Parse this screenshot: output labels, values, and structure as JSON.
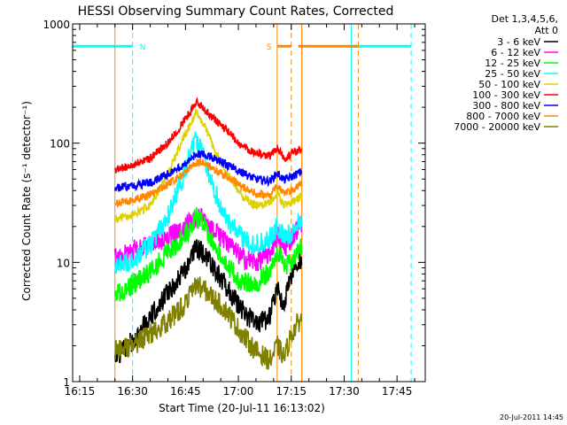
{
  "chart_data": {
    "type": "line",
    "title": "HESSI Observing Summary Count Rates, Corrected",
    "xlabel": "Start Time (20-Jul-11 16:13:02)",
    "ylabel": "Corrected Count Rate (s⁻¹ detector⁻¹)",
    "yscale": "log",
    "ylim": [
      1,
      1000
    ],
    "xlim": [
      "16:13",
      "17:53"
    ],
    "x_ticks": [
      "16:15",
      "16:30",
      "16:45",
      "17:00",
      "17:15",
      "17:30",
      "17:45"
    ],
    "y_ticks": [
      "1",
      "10",
      "100",
      "1000"
    ],
    "x_ticks_min": [
      975,
      990,
      1005,
      1020,
      1035,
      1050,
      1065
    ],
    "legend_title": [
      "Det 1,3,4,5,6,",
      "Att 0"
    ],
    "legend_position": "right",
    "timestamp": "20-Jul-2011 14:45",
    "flags": [
      {
        "label": "N",
        "color": "#00ffff",
        "y": 650,
        "segments": [
          [
            973,
            990
          ],
          [
            1052,
            1069
          ]
        ],
        "solid_at": [
          1052
        ],
        "dashed_at": [
          990,
          1069
        ]
      },
      {
        "label": "S",
        "color": "#ff8800",
        "y": 650,
        "segments": [
          [
            1031,
            1035
          ],
          [
            1037,
            1054
          ]
        ],
        "solid_at": [
          1031,
          1038
        ],
        "dashed_at": [
          1035,
          1054
        ]
      }
    ],
    "observation_window": [
      985,
      1038
    ],
    "series": [
      {
        "name": "3 - 6 keV",
        "color": "#000000",
        "values": [
          [
            985,
            1.6
          ],
          [
            990,
            2.2
          ],
          [
            995,
            3.5
          ],
          [
            1000,
            5.5
          ],
          [
            1005,
            8.5
          ],
          [
            1008,
            13
          ],
          [
            1010,
            12
          ],
          [
            1013,
            9
          ],
          [
            1017,
            6
          ],
          [
            1021,
            4
          ],
          [
            1025,
            3
          ],
          [
            1029,
            3.5
          ],
          [
            1031,
            6
          ],
          [
            1033,
            4.5
          ],
          [
            1035,
            7.5
          ],
          [
            1038,
            11
          ]
        ]
      },
      {
        "name": "6 - 12 keV",
        "color": "#ff00ff",
        "values": [
          [
            985,
            11
          ],
          [
            990,
            12.5
          ],
          [
            995,
            14
          ],
          [
            1000,
            16
          ],
          [
            1005,
            20
          ],
          [
            1008,
            24
          ],
          [
            1010,
            23
          ],
          [
            1013,
            19
          ],
          [
            1017,
            14
          ],
          [
            1021,
            11
          ],
          [
            1025,
            10
          ],
          [
            1029,
            12
          ],
          [
            1031,
            17
          ],
          [
            1033,
            13
          ],
          [
            1035,
            16
          ],
          [
            1038,
            22
          ]
        ]
      },
      {
        "name": "12 - 25 keV",
        "color": "#00ff00",
        "values": [
          [
            985,
            5.5
          ],
          [
            990,
            6.5
          ],
          [
            995,
            8.5
          ],
          [
            1000,
            12
          ],
          [
            1005,
            17
          ],
          [
            1008,
            24
          ],
          [
            1010,
            21
          ],
          [
            1013,
            15
          ],
          [
            1017,
            9
          ],
          [
            1021,
            7
          ],
          [
            1025,
            6.5
          ],
          [
            1029,
            8.5
          ],
          [
            1031,
            13
          ],
          [
            1033,
            9
          ],
          [
            1035,
            10
          ],
          [
            1038,
            14
          ]
        ]
      },
      {
        "name": "25 - 50 keV",
        "color": "#00ffff",
        "values": [
          [
            985,
            9
          ],
          [
            990,
            10.5
          ],
          [
            995,
            14
          ],
          [
            1000,
            24
          ],
          [
            1005,
            60
          ],
          [
            1008,
            110
          ],
          [
            1010,
            85
          ],
          [
            1013,
            40
          ],
          [
            1017,
            22
          ],
          [
            1021,
            16
          ],
          [
            1025,
            14
          ],
          [
            1029,
            16
          ],
          [
            1031,
            20
          ],
          [
            1033,
            16
          ],
          [
            1035,
            18
          ],
          [
            1038,
            23
          ]
        ]
      },
      {
        "name": "50 - 100 keV",
        "color": "#e0d000",
        "values": [
          [
            985,
            23
          ],
          [
            990,
            25
          ],
          [
            995,
            30
          ],
          [
            1000,
            55
          ],
          [
            1005,
            120
          ],
          [
            1008,
            180
          ],
          [
            1010,
            150
          ],
          [
            1013,
            90
          ],
          [
            1017,
            55
          ],
          [
            1021,
            36
          ],
          [
            1025,
            30
          ],
          [
            1029,
            32
          ],
          [
            1031,
            38
          ],
          [
            1033,
            30
          ],
          [
            1035,
            32
          ],
          [
            1038,
            36
          ]
        ]
      },
      {
        "name": "100 - 300 keV",
        "color": "#ff0000",
        "values": [
          [
            985,
            60
          ],
          [
            990,
            65
          ],
          [
            995,
            75
          ],
          [
            1000,
            100
          ],
          [
            1005,
            160
          ],
          [
            1008,
            220
          ],
          [
            1010,
            200
          ],
          [
            1013,
            160
          ],
          [
            1017,
            125
          ],
          [
            1021,
            95
          ],
          [
            1025,
            82
          ],
          [
            1029,
            78
          ],
          [
            1031,
            92
          ],
          [
            1033,
            75
          ],
          [
            1035,
            80
          ],
          [
            1038,
            90
          ]
        ]
      },
      {
        "name": "300 - 800 keV",
        "color": "#0000ff",
        "values": [
          [
            985,
            42
          ],
          [
            990,
            44
          ],
          [
            995,
            47
          ],
          [
            1000,
            55
          ],
          [
            1005,
            68
          ],
          [
            1008,
            80
          ],
          [
            1010,
            82
          ],
          [
            1013,
            75
          ],
          [
            1017,
            65
          ],
          [
            1021,
            56
          ],
          [
            1025,
            50
          ],
          [
            1029,
            48
          ],
          [
            1031,
            56
          ],
          [
            1033,
            49
          ],
          [
            1035,
            52
          ],
          [
            1038,
            58
          ]
        ]
      },
      {
        "name": "800 - 7000 keV",
        "color": "#ff8800",
        "values": [
          [
            985,
            31
          ],
          [
            990,
            33
          ],
          [
            995,
            37
          ],
          [
            1000,
            45
          ],
          [
            1005,
            57
          ],
          [
            1008,
            68
          ],
          [
            1010,
            68
          ],
          [
            1013,
            60
          ],
          [
            1017,
            52
          ],
          [
            1021,
            43
          ],
          [
            1025,
            38
          ],
          [
            1029,
            36
          ],
          [
            1031,
            44
          ],
          [
            1033,
            37
          ],
          [
            1035,
            40
          ],
          [
            1038,
            47
          ]
        ]
      },
      {
        "name": "7000 - 20000 keV",
        "color": "#808000",
        "values": [
          [
            985,
            1.8
          ],
          [
            990,
            2.0
          ],
          [
            995,
            2.5
          ],
          [
            1000,
            3.2
          ],
          [
            1005,
            4.5
          ],
          [
            1008,
            6.5
          ],
          [
            1010,
            6.0
          ],
          [
            1013,
            5.0
          ],
          [
            1017,
            3.8
          ],
          [
            1021,
            2.5
          ],
          [
            1025,
            1.8
          ],
          [
            1029,
            1.5
          ],
          [
            1031,
            2.0
          ],
          [
            1033,
            1.6
          ],
          [
            1035,
            2.5
          ],
          [
            1038,
            3.5
          ]
        ]
      }
    ]
  }
}
